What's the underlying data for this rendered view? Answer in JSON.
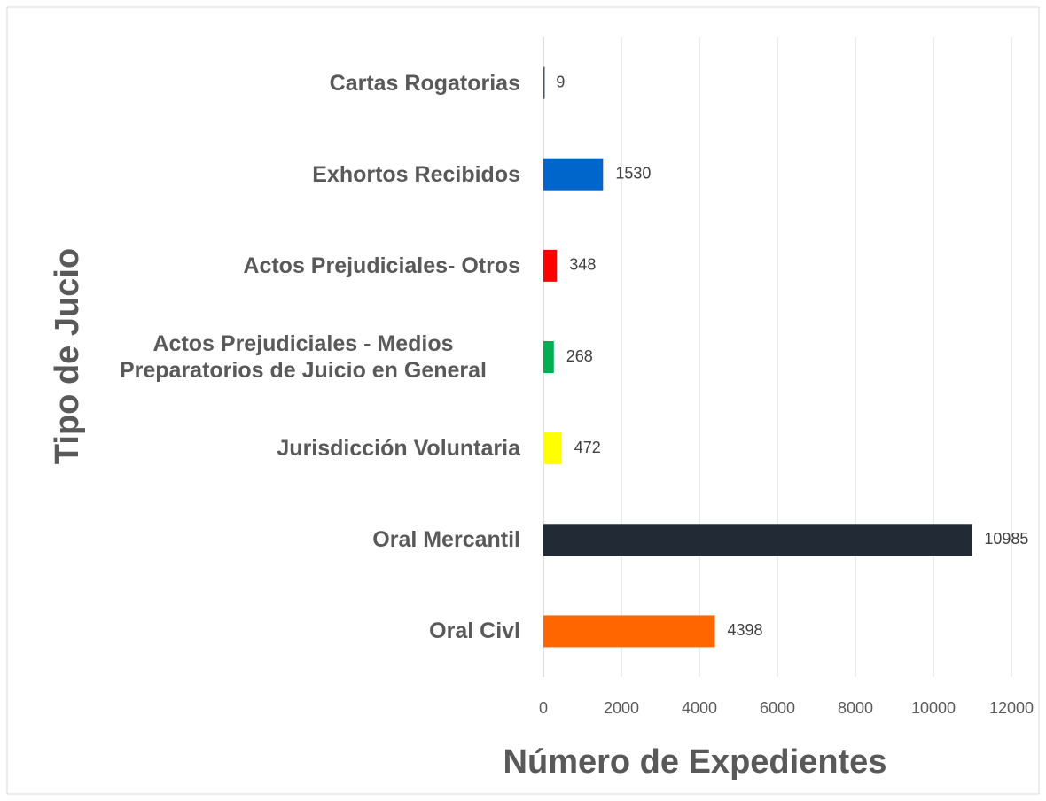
{
  "chart_data": {
    "type": "bar",
    "orientation": "horizontal",
    "x_axis_title": "Número de Expedientes",
    "y_axis_title": "Tipo de Jucio",
    "categories": [
      "Cartas Rogatorias",
      "Exhortos Recibidos",
      "Actos Prejudiciales- Otros",
      "Actos Prejudiciales - Medios Preparatorios de Juicio en General",
      "Jurisdicción Voluntaria",
      "Oral Mercantil",
      "Oral Civl"
    ],
    "values": [
      9,
      1530,
      348,
      268,
      472,
      10985,
      4398
    ],
    "colors": [
      "#44546a",
      "#0066cc",
      "#ff0000",
      "#00b050",
      "#ffff00",
      "#222a35",
      "#ff6600"
    ],
    "xlim": [
      0,
      12000
    ],
    "xticks": [
      0,
      2000,
      4000,
      6000,
      8000,
      10000,
      12000
    ],
    "grid": true
  }
}
